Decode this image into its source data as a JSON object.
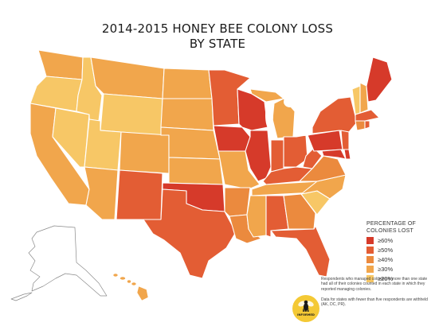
{
  "title": {
    "line1": "2014-2015 HONEY BEE COLONY LOSS",
    "line2": "BY STATE"
  },
  "legend": {
    "title_line1": "PERCENTAGE OF",
    "title_line2": "COLONIES LOST",
    "items": [
      {
        "label": "≥60%",
        "color": "#d63a2a"
      },
      {
        "label": "≥50%",
        "color": "#e35d34"
      },
      {
        "label": "≥40%",
        "color": "#eb8a3e"
      },
      {
        "label": "≥30%",
        "color": "#f1a64c"
      },
      {
        "label": "≥20%",
        "color": "#f7c766"
      }
    ]
  },
  "notes": {
    "note1": "Respondents who managed colonies in more than one state had all of their colonies counted in each state in which they reported managing colonies.",
    "note2": "Data for states with fewer than five respondents are withheld (AK, DC, PR)."
  },
  "logo": {
    "line1": "BEE",
    "line2": "INFORMED"
  }
}
